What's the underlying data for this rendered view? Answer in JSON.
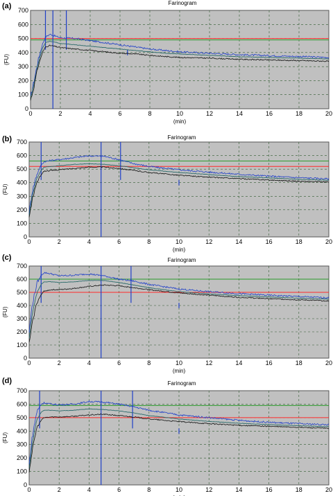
{
  "colors": {
    "plot_background": "#c0c0c0",
    "grid": "#2f5a2f",
    "consistency_line_red": "#ff2a2a",
    "consistency_line_green": "#2a9a2a",
    "upper_curve": "#1f3fc8",
    "median_curve": "#2a6a6a",
    "lower_curve": "#111111",
    "marker": "#1f3fc8"
  },
  "chart_data": [
    {
      "panel": "(a)",
      "type": "line",
      "title": "Farinogram",
      "xlabel": "(min)",
      "ylabel": "(FU)",
      "xlim": [
        0,
        20
      ],
      "ylim": [
        0,
        700
      ],
      "xticks": [
        0,
        2,
        4,
        6,
        8,
        10,
        12,
        14,
        16,
        18,
        20
      ],
      "yticks": [
        0,
        100,
        200,
        300,
        400,
        500,
        600,
        700
      ],
      "grid": true,
      "reference_lines": [
        {
          "color": "red",
          "y": 500
        },
        {
          "color": "green",
          "y": 490
        }
      ],
      "markers_x": [
        1.0,
        1.5,
        2.4,
        6.5
      ],
      "series": [
        {
          "role": "upper",
          "x": [
            0,
            0.2,
            0.5,
            0.8,
            1.0,
            1.3,
            1.6,
            2.0,
            3,
            4,
            5,
            6,
            7,
            8,
            9,
            10,
            12,
            14,
            16,
            18,
            20
          ],
          "y": [
            80,
            180,
            340,
            460,
            510,
            530,
            520,
            505,
            500,
            485,
            470,
            455,
            440,
            425,
            415,
            405,
            395,
            385,
            378,
            372,
            365
          ]
        },
        {
          "role": "median",
          "x": [
            0,
            0.2,
            0.5,
            0.8,
            1.0,
            1.3,
            1.6,
            2.0,
            3,
            4,
            5,
            6,
            7,
            8,
            9,
            10,
            12,
            14,
            16,
            18,
            20
          ],
          "y": [
            70,
            160,
            320,
            430,
            470,
            480,
            475,
            465,
            455,
            445,
            435,
            425,
            415,
            405,
            395,
            390,
            380,
            370,
            365,
            360,
            355
          ]
        },
        {
          "role": "lower",
          "x": [
            0,
            0.2,
            0.5,
            0.8,
            1.0,
            1.3,
            1.6,
            2.0,
            3,
            4,
            5,
            6,
            7,
            8,
            9,
            10,
            12,
            14,
            16,
            18,
            20
          ],
          "y": [
            60,
            140,
            300,
            400,
            440,
            450,
            445,
            435,
            425,
            415,
            405,
            395,
            390,
            380,
            372,
            365,
            360,
            352,
            347,
            343,
            338
          ]
        }
      ]
    },
    {
      "panel": "(b)",
      "type": "line",
      "title": "Farinogram",
      "xlabel": "(min)",
      "ylabel": "(FU)",
      "xlim": [
        0,
        20
      ],
      "ylim": [
        0,
        700
      ],
      "xticks": [
        0,
        2,
        4,
        6,
        8,
        10,
        12,
        14,
        16,
        18,
        20
      ],
      "yticks": [
        0,
        100,
        200,
        300,
        400,
        500,
        600,
        700
      ],
      "grid": true,
      "reference_lines": [
        {
          "color": "red",
          "y": 520
        },
        {
          "color": "green",
          "y": 560
        }
      ],
      "markers_x": [
        0.8,
        4.8,
        6.1,
        10.0
      ],
      "series": [
        {
          "role": "upper",
          "x": [
            0,
            0.2,
            0.5,
            0.8,
            1.0,
            1.5,
            2,
            3,
            4,
            5,
            6,
            7,
            8,
            10,
            12,
            14,
            16,
            18,
            20
          ],
          "y": [
            180,
            330,
            460,
            530,
            555,
            565,
            570,
            585,
            598,
            595,
            570,
            540,
            520,
            495,
            478,
            462,
            448,
            437,
            428
          ]
        },
        {
          "role": "median",
          "x": [
            0,
            0.2,
            0.5,
            0.8,
            1.0,
            1.5,
            2,
            3,
            4,
            5,
            6,
            7,
            8,
            10,
            12,
            14,
            16,
            18,
            20
          ],
          "y": [
            160,
            300,
            430,
            490,
            515,
            520,
            525,
            535,
            540,
            535,
            525,
            510,
            495,
            475,
            460,
            445,
            435,
            425,
            418
          ]
        },
        {
          "role": "lower",
          "x": [
            0,
            0.2,
            0.5,
            0.8,
            1.0,
            1.5,
            2,
            3,
            4,
            5,
            6,
            7,
            8,
            10,
            12,
            14,
            16,
            18,
            20
          ],
          "y": [
            140,
            270,
            400,
            460,
            485,
            490,
            495,
            505,
            515,
            515,
            505,
            490,
            475,
            455,
            440,
            430,
            420,
            410,
            405
          ]
        }
      ]
    },
    {
      "panel": "(c)",
      "type": "line",
      "title": "Farinogram",
      "xlabel": "(min)",
      "ylabel": "(FU)",
      "xlim": [
        0,
        20
      ],
      "ylim": [
        0,
        700
      ],
      "xticks": [
        0,
        2,
        4,
        6,
        8,
        10,
        12,
        14,
        16,
        18,
        20
      ],
      "yticks": [
        0,
        100,
        200,
        300,
        400,
        500,
        600,
        700
      ],
      "grid": true,
      "reference_lines": [
        {
          "color": "red",
          "y": 500
        },
        {
          "color": "green",
          "y": 600
        }
      ],
      "markers_x": [
        0.8,
        4.8,
        6.8,
        10.0
      ],
      "series": [
        {
          "role": "upper",
          "x": [
            0,
            0.2,
            0.5,
            0.8,
            1.0,
            1.5,
            2,
            3,
            4,
            5,
            6,
            7,
            8,
            10,
            12,
            14,
            16,
            18,
            20
          ],
          "y": [
            200,
            400,
            560,
            630,
            650,
            640,
            625,
            630,
            640,
            625,
            600,
            585,
            560,
            525,
            505,
            490,
            478,
            468,
            458
          ]
        },
        {
          "role": "median",
          "x": [
            0,
            0.2,
            0.5,
            0.8,
            1.0,
            1.5,
            2,
            3,
            4,
            5,
            6,
            7,
            8,
            10,
            12,
            14,
            16,
            18,
            20
          ],
          "y": [
            150,
            330,
            490,
            560,
            580,
            580,
            575,
            580,
            590,
            590,
            575,
            555,
            535,
            505,
            488,
            475,
            465,
            455,
            448
          ]
        },
        {
          "role": "lower",
          "x": [
            0,
            0.2,
            0.5,
            0.8,
            1.0,
            1.5,
            2,
            3,
            4,
            5,
            6,
            7,
            8,
            10,
            12,
            14,
            16,
            18,
            20
          ],
          "y": [
            110,
            260,
            420,
            480,
            510,
            520,
            520,
            530,
            545,
            555,
            550,
            535,
            520,
            495,
            478,
            462,
            452,
            443,
            435
          ]
        }
      ]
    },
    {
      "panel": "(d)",
      "type": "line",
      "title": "Farinogram",
      "xlabel": "(min)",
      "ylabel": "(FU)",
      "xlim": [
        0,
        20
      ],
      "ylim": [
        0,
        700
      ],
      "xticks": [
        0,
        2,
        4,
        6,
        8,
        10,
        12,
        14,
        16,
        18,
        20
      ],
      "yticks": [
        0,
        100,
        200,
        300,
        400,
        500,
        600,
        700
      ],
      "grid": true,
      "reference_lines": [
        {
          "color": "red",
          "y": 500
        },
        {
          "color": "green",
          "y": 590
        }
      ],
      "markers_x": [
        0.7,
        4.8,
        6.9,
        10.0
      ],
      "series": [
        {
          "role": "upper",
          "x": [
            0,
            0.2,
            0.5,
            0.8,
            1.0,
            1.5,
            2,
            3,
            4,
            5,
            6,
            7,
            8,
            10,
            12,
            14,
            16,
            18,
            20
          ],
          "y": [
            150,
            350,
            540,
            600,
            610,
            600,
            595,
            600,
            620,
            615,
            600,
            580,
            555,
            520,
            500,
            480,
            465,
            455,
            447
          ]
        },
        {
          "role": "median",
          "x": [
            0,
            0.2,
            0.5,
            0.8,
            1.0,
            1.5,
            2,
            3,
            4,
            5,
            6,
            7,
            8,
            10,
            12,
            14,
            16,
            18,
            20
          ],
          "y": [
            120,
            300,
            480,
            540,
            555,
            555,
            550,
            555,
            565,
            560,
            550,
            535,
            515,
            490,
            472,
            458,
            448,
            440,
            433
          ]
        },
        {
          "role": "lower",
          "x": [
            0,
            0.2,
            0.5,
            0.8,
            1.0,
            1.5,
            2,
            3,
            4,
            5,
            6,
            7,
            8,
            10,
            12,
            14,
            16,
            18,
            20
          ],
          "y": [
            100,
            250,
            420,
            480,
            500,
            505,
            505,
            510,
            520,
            525,
            515,
            505,
            490,
            470,
            455,
            443,
            435,
            428,
            420
          ]
        }
      ]
    }
  ]
}
